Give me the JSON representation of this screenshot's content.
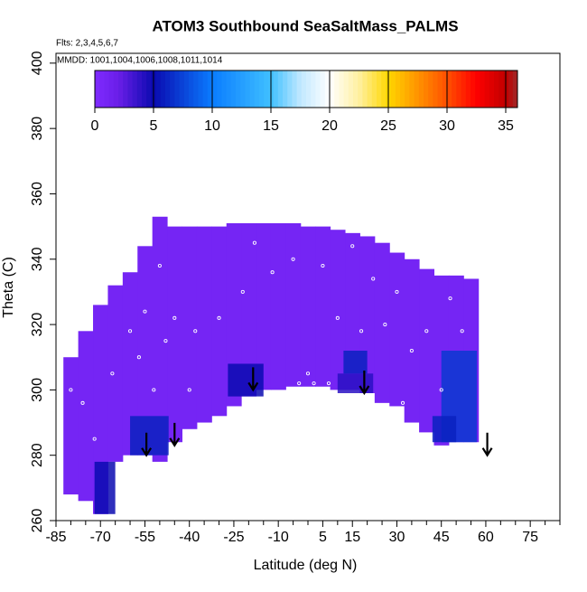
{
  "chart_data": {
    "type": "curtain",
    "title": "ATOM3 Southbound SeaSaltMass_PALMS",
    "flights_note": "Flts: 2,3,4,5,6,7",
    "dates_note": "MMDD: 1001,1004,1006,1008,1011,1014",
    "x_label": "Latitude (deg N)",
    "y_label": "Theta (C)",
    "xlim": [
      -85,
      85
    ],
    "ylim": [
      260,
      403
    ],
    "xticks": [
      -85,
      -70,
      -55,
      -40,
      -25,
      -10,
      5,
      15,
      30,
      45,
      60,
      75
    ],
    "xminorticks": [
      -80,
      -75,
      -65,
      -60,
      -50,
      -45,
      -35,
      -30,
      -20,
      -15,
      -5,
      0,
      10,
      20,
      25,
      35,
      40,
      50,
      55,
      65,
      70,
      80,
      85
    ],
    "yticks": [
      260,
      280,
      300,
      320,
      340,
      360,
      380,
      400
    ],
    "colorbar_lim": [
      0,
      36
    ],
    "colorbar_ticks": [
      0,
      5,
      10,
      15,
      20,
      25,
      30,
      35
    ],
    "colorscale": [
      [
        0,
        "#7f2bff"
      ],
      [
        2,
        "#6a1ee8"
      ],
      [
        5,
        "#0a0ab0"
      ],
      [
        10,
        "#0a7cff"
      ],
      [
        15,
        "#40c0ff"
      ],
      [
        17.5,
        "#c0e8ff"
      ],
      [
        20,
        "#ffffff"
      ],
      [
        22.5,
        "#fff0a0"
      ],
      [
        25,
        "#ffd700"
      ],
      [
        30,
        "#ff5000"
      ],
      [
        32.5,
        "#ff0000"
      ],
      [
        35,
        "#c00000"
      ],
      [
        36,
        "#a02828"
      ]
    ],
    "column_width": 5,
    "columns": {
      "lat": [
        -80,
        -75,
        -70,
        -65,
        -60,
        -55,
        -50,
        -45,
        -40,
        -35,
        -30,
        -25,
        -20,
        -15,
        -10,
        -5,
        0,
        5,
        10,
        15,
        20,
        25,
        30,
        35,
        40,
        45,
        50,
        55
      ],
      "theta_min": [
        268,
        266,
        262,
        278,
        280,
        280,
        278,
        284,
        288,
        290,
        292,
        295,
        298,
        300,
        300,
        301,
        301,
        301,
        300,
        300,
        299,
        296,
        295,
        290,
        287,
        283,
        284,
        284
      ],
      "theta_max": [
        310,
        318,
        326,
        332,
        336,
        344,
        353,
        350,
        350,
        350,
        350,
        351,
        351,
        351,
        351,
        351,
        350,
        350,
        349,
        348,
        347,
        345,
        342,
        340,
        337,
        335,
        335,
        334
      ],
      "values": [
        1,
        1,
        1,
        1,
        1,
        1,
        1,
        1,
        1,
        1,
        1,
        1,
        1,
        1,
        1,
        1,
        1,
        1,
        1,
        1,
        1,
        1,
        1,
        1,
        1,
        1,
        1,
        1
      ]
    },
    "patches": [
      {
        "lat": [
          -60,
          -47
        ],
        "theta": [
          280,
          292
        ],
        "value": 6
      },
      {
        "lat": [
          -72,
          -65
        ],
        "theta": [
          262,
          278
        ],
        "value": 5
      },
      {
        "lat": [
          -27,
          -15
        ],
        "theta": [
          298,
          308
        ],
        "value": 5
      },
      {
        "lat": [
          10,
          22
        ],
        "theta": [
          299,
          305
        ],
        "value": 4
      },
      {
        "lat": [
          12,
          20
        ],
        "theta": [
          305,
          312
        ],
        "value": 6
      },
      {
        "lat": [
          45,
          57
        ],
        "theta": [
          284,
          312
        ],
        "value": 7
      },
      {
        "lat": [
          42,
          50
        ],
        "theta": [
          284,
          292
        ],
        "value": 6
      }
    ],
    "samples": {
      "lat": [
        -80,
        -76,
        -72,
        -66,
        -60,
        -57,
        -55,
        -52,
        -50,
        -48,
        -45,
        -38,
        -30,
        -22,
        -18,
        -12,
        -5,
        0,
        5,
        10,
        15,
        18,
        22,
        26,
        30,
        35,
        40,
        45,
        48,
        52,
        -3,
        2,
        7,
        -40,
        32
      ],
      "theta": [
        300,
        296,
        285,
        305,
        318,
        310,
        324,
        300,
        338,
        315,
        322,
        318,
        322,
        330,
        345,
        336,
        340,
        305,
        338,
        322,
        344,
        318,
        334,
        320,
        330,
        312,
        318,
        300,
        328,
        318,
        302,
        302,
        302,
        300,
        296
      ]
    },
    "arrows": {
      "lat": [
        -54.5,
        -45,
        -18.5,
        19,
        60.5
      ],
      "theta": [
        280,
        283,
        300,
        299,
        280
      ]
    }
  }
}
